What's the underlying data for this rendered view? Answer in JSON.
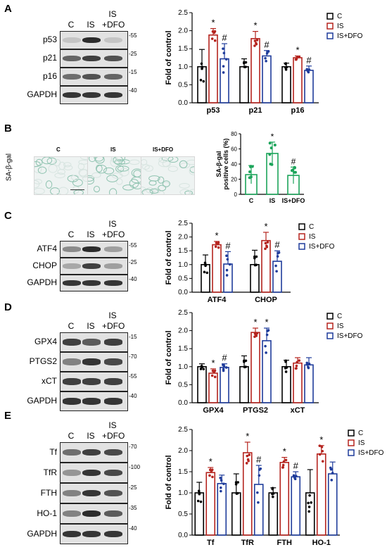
{
  "panels": {
    "A": {
      "letter": "A",
      "lanes": [
        "C",
        "IS",
        "+DFO"
      ],
      "lane_top": [
        "",
        "",
        "IS"
      ],
      "rows": [
        {
          "label": "p53",
          "mw": "-55",
          "intensity": [
            0.15,
            0.95,
            0.15
          ]
        },
        {
          "label": "p21",
          "mw": "-25",
          "intensity": [
            0.65,
            0.85,
            0.75
          ]
        },
        {
          "label": "p16",
          "mw": "-15",
          "intensity": [
            0.6,
            0.75,
            0.65
          ]
        },
        {
          "label": "GAPDH",
          "mw": "-40",
          "intensity": [
            0.9,
            0.9,
            0.9
          ]
        }
      ]
    },
    "B": {
      "letter": "B",
      "stain_label": "SA-β-gal",
      "images": [
        "C",
        "IS",
        "IS+DFO"
      ]
    },
    "C": {
      "letter": "C",
      "lanes": [
        "C",
        "IS",
        "+DFO"
      ],
      "lane_top": [
        "",
        "",
        "IS"
      ],
      "rows": [
        {
          "label": "ATF4",
          "mw": "-55",
          "intensity": [
            0.45,
            0.95,
            0.35
          ]
        },
        {
          "label": "CHOP",
          "mw": "-25",
          "intensity": [
            0.3,
            0.85,
            0.35
          ]
        },
        {
          "label": "GAPDH",
          "mw": "-40",
          "intensity": [
            0.9,
            0.9,
            0.9
          ]
        }
      ]
    },
    "D": {
      "letter": "D",
      "lanes": [
        "C",
        "IS",
        "+DFO"
      ],
      "lane_top": [
        "",
        "",
        "IS"
      ],
      "rows": [
        {
          "label": "GPX4",
          "mw": "-15",
          "intensity": [
            0.85,
            0.7,
            0.85
          ]
        },
        {
          "label": "PTGS2",
          "mw": "-70",
          "intensity": [
            0.5,
            0.9,
            0.8
          ]
        },
        {
          "label": "xCT",
          "mw": "-55",
          "intensity": [
            0.85,
            0.85,
            0.85
          ]
        },
        {
          "label": "GAPDH",
          "mw": "-40",
          "intensity": [
            0.9,
            0.9,
            0.9
          ]
        }
      ]
    },
    "E": {
      "letter": "E",
      "lanes": [
        "C",
        "IS",
        "+DFO"
      ],
      "lane_top": [
        "",
        "",
        "IS"
      ],
      "rows": [
        {
          "label": "Tf",
          "mw": "-70",
          "intensity": [
            0.6,
            0.85,
            0.8
          ]
        },
        {
          "label": "TfR",
          "mw": "-100",
          "intensity": [
            0.4,
            0.9,
            0.8
          ]
        },
        {
          "label": "FTH",
          "mw": "-25",
          "intensity": [
            0.5,
            0.9,
            0.75
          ]
        },
        {
          "label": "HO-1",
          "mw": "-35",
          "intensity": [
            0.5,
            0.95,
            0.7
          ]
        },
        {
          "label": "GAPDH",
          "mw": "-40",
          "intensity": [
            0.9,
            0.9,
            0.9
          ]
        }
      ]
    }
  },
  "colors": {
    "C": "#000000",
    "IS": "#b5241e",
    "IS+DFO": "#1f3c9b",
    "SA": "#1ca45a"
  },
  "chart_data": [
    {
      "id": "A",
      "type": "bar",
      "ylabel": "Fold of control",
      "ylim": [
        0,
        2.5
      ],
      "yticks": [
        "0.0",
        "0.5",
        "1.0",
        "1.5",
        "2.0",
        "2.5"
      ],
      "categories": [
        "p53",
        "p21",
        "p16"
      ],
      "legend": [
        "C",
        "IS",
        "IS+DFO"
      ],
      "series": [
        {
          "name": "C",
          "values": [
            1.0,
            1.0,
            1.0
          ],
          "err": [
            0.48,
            0.22,
            0.1
          ]
        },
        {
          "name": "IS",
          "values": [
            1.88,
            1.78,
            1.25
          ],
          "err": [
            0.18,
            0.2,
            0.05
          ]
        },
        {
          "name": "IS+DFO",
          "values": [
            1.22,
            1.3,
            0.9
          ],
          "err": [
            0.42,
            0.15,
            0.12
          ]
        }
      ],
      "marks": [
        [
          "",
          "*",
          "#"
        ],
        [
          "",
          "*",
          "#"
        ],
        [
          "",
          "*",
          "#"
        ]
      ]
    },
    {
      "id": "B",
      "type": "bar",
      "ylabel": "SA-β-gal positive cells (%)",
      "ylim": [
        0,
        80
      ],
      "yticks": [
        "0",
        "20",
        "40",
        "60",
        "80"
      ],
      "categories": [
        "C",
        "IS",
        "IS+DFO"
      ],
      "values": [
        26,
        54,
        25
      ],
      "err": [
        12,
        15,
        11
      ],
      "marks": [
        "",
        "*",
        "#"
      ]
    },
    {
      "id": "C",
      "type": "bar",
      "ylabel": "Fold of control",
      "ylim": [
        0,
        2.5
      ],
      "yticks": [
        "0.0",
        "0.5",
        "1.0",
        "1.5",
        "2.0",
        "2.5"
      ],
      "categories": [
        "ATF4",
        "CHOP"
      ],
      "legend": [
        "C",
        "IS",
        "IS+DFO"
      ],
      "series": [
        {
          "name": "C",
          "values": [
            1.0,
            1.0
          ],
          "err": [
            0.35,
            0.52
          ]
        },
        {
          "name": "IS",
          "values": [
            1.72,
            1.87
          ],
          "err": [
            0.12,
            0.3
          ]
        },
        {
          "name": "IS+DFO",
          "values": [
            1.02,
            1.12
          ],
          "err": [
            0.45,
            0.38
          ]
        }
      ],
      "marks": [
        [
          "",
          "*",
          "#"
        ],
        [
          "",
          "*",
          "#"
        ]
      ]
    },
    {
      "id": "D",
      "type": "bar",
      "ylabel": "Fold of control",
      "ylim": [
        0,
        2.5
      ],
      "yticks": [
        "0.0",
        "0.5",
        "1.0",
        "1.5",
        "2.0",
        "2.5"
      ],
      "categories": [
        "GPX4",
        "PTGS2",
        "xCT"
      ],
      "legend": [
        "C",
        "IS",
        "IS+DFO"
      ],
      "series": [
        {
          "name": "C",
          "values": [
            1.0,
            1.0,
            1.0
          ],
          "err": [
            0.08,
            0.3,
            0.18
          ]
        },
        {
          "name": "IS",
          "values": [
            0.82,
            1.95,
            1.1
          ],
          "err": [
            0.12,
            0.12,
            0.15
          ]
        },
        {
          "name": "IS+DFO",
          "values": [
            0.98,
            1.72,
            1.05
          ],
          "err": [
            0.1,
            0.35,
            0.2
          ]
        }
      ],
      "marks": [
        [
          "",
          "*",
          "#"
        ],
        [
          "",
          "*",
          "*"
        ],
        [
          "",
          "",
          ""
        ]
      ]
    },
    {
      "id": "E",
      "type": "bar",
      "ylabel": "Fold of control",
      "ylim": [
        0,
        2.5
      ],
      "yticks": [
        "0.0",
        "0.5",
        "1.0",
        "1.5",
        "2.0",
        "2.5"
      ],
      "categories": [
        "Tf",
        "TfR",
        "FTH",
        "HO-1"
      ],
      "legend": [
        "C",
        "IS",
        "IS+DFO"
      ],
      "series": [
        {
          "name": "C",
          "values": [
            1.0,
            1.0,
            1.0,
            1.0
          ],
          "err": [
            0.25,
            0.45,
            0.12,
            0.55
          ]
        },
        {
          "name": "IS",
          "values": [
            1.48,
            1.95,
            1.72,
            1.92
          ],
          "err": [
            0.12,
            0.25,
            0.12,
            0.2
          ]
        },
        {
          "name": "IS+DFO",
          "values": [
            1.22,
            1.2,
            1.38,
            1.45
          ],
          "err": [
            0.2,
            0.45,
            0.12,
            0.28
          ]
        }
      ],
      "marks": [
        [
          "",
          "*",
          ""
        ],
        [
          "",
          "*",
          "#"
        ],
        [
          "",
          "*",
          "#"
        ],
        [
          "",
          "*",
          ""
        ]
      ]
    }
  ]
}
